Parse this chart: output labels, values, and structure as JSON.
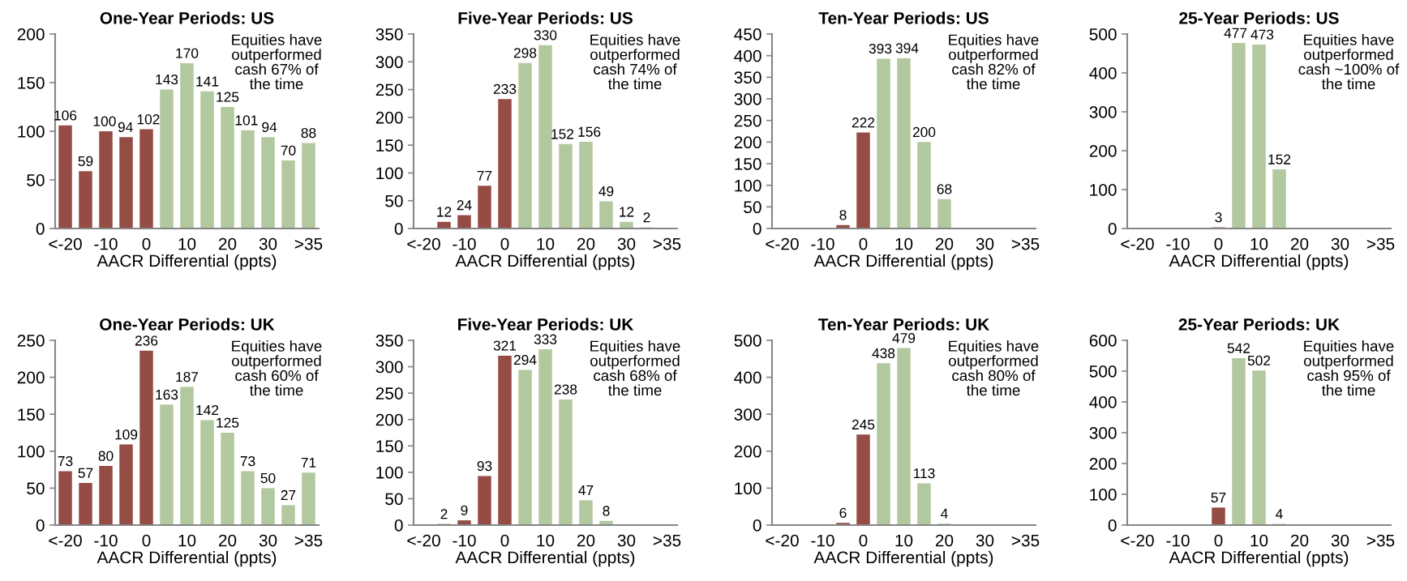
{
  "chart_data": [
    {
      "type": "bar",
      "title": "One-Year Periods: US",
      "xlabel": "AACR Differential (ppts)",
      "categories": [
        "<-20",
        null,
        "-10",
        null,
        "0",
        null,
        "10",
        null,
        "20",
        null,
        "30",
        null,
        ">35"
      ],
      "values": [
        106,
        59,
        100,
        94,
        102,
        143,
        170,
        141,
        125,
        101,
        94,
        70,
        88
      ],
      "colors": [
        "#944c44",
        "#944c44",
        "#944c44",
        "#944c44",
        "#944c44",
        "#b2c9a0",
        "#b2c9a0",
        "#b2c9a0",
        "#b2c9a0",
        "#b2c9a0",
        "#b2c9a0",
        "#b2c9a0",
        "#b2c9a0"
      ],
      "ylim": [
        0,
        200
      ],
      "yticks": [
        0,
        50,
        100,
        150,
        200
      ],
      "data_labels": true,
      "annotations": [
        "Equities have\noutperformed\ncash 67% of\nthe time"
      ]
    },
    {
      "type": "bar",
      "title": "Five-Year Periods: US",
      "xlabel": "AACR Differential (ppts)",
      "categories": [
        "<-20",
        null,
        "-10",
        null,
        "0",
        null,
        "10",
        null,
        "20",
        null,
        "30",
        null,
        ">35"
      ],
      "values": [
        null,
        12,
        24,
        77,
        233,
        298,
        330,
        152,
        156,
        49,
        12,
        2,
        null
      ],
      "colors": [
        "#944c44",
        "#944c44",
        "#944c44",
        "#944c44",
        "#944c44",
        "#b2c9a0",
        "#b2c9a0",
        "#b2c9a0",
        "#b2c9a0",
        "#b2c9a0",
        "#b2c9a0",
        "#b2c9a0",
        "#b2c9a0"
      ],
      "ylim": [
        0,
        350
      ],
      "yticks": [
        0,
        50,
        100,
        150,
        200,
        250,
        300,
        350
      ],
      "data_labels": true,
      "annotations": [
        "Equities have\noutperformed\ncash 74% of\nthe time"
      ]
    },
    {
      "type": "bar",
      "title": "Ten-Year Periods: US",
      "xlabel": "AACR Differential (ppts)",
      "categories": [
        "<-20",
        null,
        "-10",
        null,
        "0",
        null,
        "10",
        null,
        "20",
        null,
        "30",
        null,
        ">35"
      ],
      "values": [
        null,
        null,
        null,
        8,
        222,
        393,
        394,
        200,
        68,
        null,
        null,
        null,
        null
      ],
      "colors": [
        "#944c44",
        "#944c44",
        "#944c44",
        "#944c44",
        "#944c44",
        "#b2c9a0",
        "#b2c9a0",
        "#b2c9a0",
        "#b2c9a0",
        "#b2c9a0",
        "#b2c9a0",
        "#b2c9a0",
        "#b2c9a0"
      ],
      "ylim": [
        0,
        450
      ],
      "yticks": [
        0,
        50,
        100,
        150,
        200,
        250,
        300,
        350,
        400,
        450
      ],
      "data_labels": true,
      "annotations": [
        "Equities have\noutperformed\ncash 82% of\nthe time"
      ]
    },
    {
      "type": "bar",
      "title": "25-Year Periods: US",
      "xlabel": "AACR Differential (ppts)",
      "categories": [
        "<-20",
        null,
        "-10",
        null,
        "0",
        null,
        "10",
        null,
        "20",
        null,
        "30",
        null,
        ">35"
      ],
      "values": [
        null,
        null,
        null,
        null,
        3,
        477,
        473,
        152,
        null,
        null,
        null,
        null,
        null
      ],
      "colors": [
        "#944c44",
        "#944c44",
        "#944c44",
        "#944c44",
        "#944c44",
        "#b2c9a0",
        "#b2c9a0",
        "#b2c9a0",
        "#b2c9a0",
        "#b2c9a0",
        "#b2c9a0",
        "#b2c9a0",
        "#b2c9a0"
      ],
      "ylim": [
        0,
        500
      ],
      "yticks": [
        0,
        100,
        200,
        300,
        400,
        500
      ],
      "data_labels": true,
      "annotations": [
        "Equities have\noutperformed\ncash ~100% of\nthe time"
      ]
    },
    {
      "type": "bar",
      "title": "One-Year Periods: UK",
      "xlabel": "AACR Differential (ppts)",
      "categories": [
        "<-20",
        null,
        "-10",
        null,
        "0",
        null,
        "10",
        null,
        "20",
        null,
        "30",
        null,
        ">35"
      ],
      "values": [
        73,
        57,
        80,
        109,
        236,
        163,
        187,
        142,
        125,
        73,
        50,
        27,
        71
      ],
      "colors": [
        "#944c44",
        "#944c44",
        "#944c44",
        "#944c44",
        "#944c44",
        "#b2c9a0",
        "#b2c9a0",
        "#b2c9a0",
        "#b2c9a0",
        "#b2c9a0",
        "#b2c9a0",
        "#b2c9a0",
        "#b2c9a0"
      ],
      "ylim": [
        0,
        250
      ],
      "yticks": [
        0,
        50,
        100,
        150,
        200,
        250
      ],
      "data_labels": true,
      "annotations": [
        "Equities have\noutperformed\ncash 60% of\nthe time"
      ]
    },
    {
      "type": "bar",
      "title": "Five-Year Periods: UK",
      "xlabel": "AACR Differential (ppts)",
      "categories": [
        "<-20",
        null,
        "-10",
        null,
        "0",
        null,
        "10",
        null,
        "20",
        null,
        "30",
        null,
        ">35"
      ],
      "values": [
        null,
        2,
        9,
        93,
        321,
        294,
        333,
        238,
        47,
        8,
        null,
        null,
        null
      ],
      "colors": [
        "#944c44",
        "#944c44",
        "#944c44",
        "#944c44",
        "#944c44",
        "#b2c9a0",
        "#b2c9a0",
        "#b2c9a0",
        "#b2c9a0",
        "#b2c9a0",
        "#b2c9a0",
        "#b2c9a0",
        "#b2c9a0"
      ],
      "ylim": [
        0,
        350
      ],
      "yticks": [
        0,
        50,
        100,
        150,
        200,
        250,
        300,
        350
      ],
      "data_labels": true,
      "annotations": [
        "Equities have\noutperformed\ncash 68% of\nthe time"
      ]
    },
    {
      "type": "bar",
      "title": "Ten-Year Periods: UK",
      "xlabel": "AACR Differential (ppts)",
      "categories": [
        "<-20",
        null,
        "-10",
        null,
        "0",
        null,
        "10",
        null,
        "20",
        null,
        "30",
        null,
        ">35"
      ],
      "values": [
        null,
        null,
        null,
        6,
        245,
        438,
        479,
        113,
        4,
        null,
        null,
        null,
        null
      ],
      "colors": [
        "#944c44",
        "#944c44",
        "#944c44",
        "#944c44",
        "#944c44",
        "#b2c9a0",
        "#b2c9a0",
        "#b2c9a0",
        "#b2c9a0",
        "#b2c9a0",
        "#b2c9a0",
        "#b2c9a0",
        "#b2c9a0"
      ],
      "ylim": [
        0,
        500
      ],
      "yticks": [
        0,
        100,
        200,
        300,
        400,
        500
      ],
      "data_labels": true,
      "annotations": [
        "Equities have\noutperformed\ncash 80% of\nthe time"
      ]
    },
    {
      "type": "bar",
      "title": "25-Year Periods: UK",
      "xlabel": "AACR Differential (ppts)",
      "categories": [
        "<-20",
        null,
        "-10",
        null,
        "0",
        null,
        "10",
        null,
        "20",
        null,
        "30",
        null,
        ">35"
      ],
      "values": [
        null,
        null,
        null,
        null,
        57,
        542,
        502,
        4,
        null,
        null,
        null,
        null,
        null
      ],
      "colors": [
        "#944c44",
        "#944c44",
        "#944c44",
        "#944c44",
        "#944c44",
        "#b2c9a0",
        "#b2c9a0",
        "#b2c9a0",
        "#b2c9a0",
        "#b2c9a0",
        "#b2c9a0",
        "#b2c9a0",
        "#b2c9a0"
      ],
      "ylim": [
        0,
        600
      ],
      "yticks": [
        0,
        100,
        200,
        300,
        400,
        500,
        600
      ],
      "data_labels": true,
      "annotations": [
        "Equities have\noutperformed\ncash 95% of\nthe time"
      ]
    }
  ]
}
